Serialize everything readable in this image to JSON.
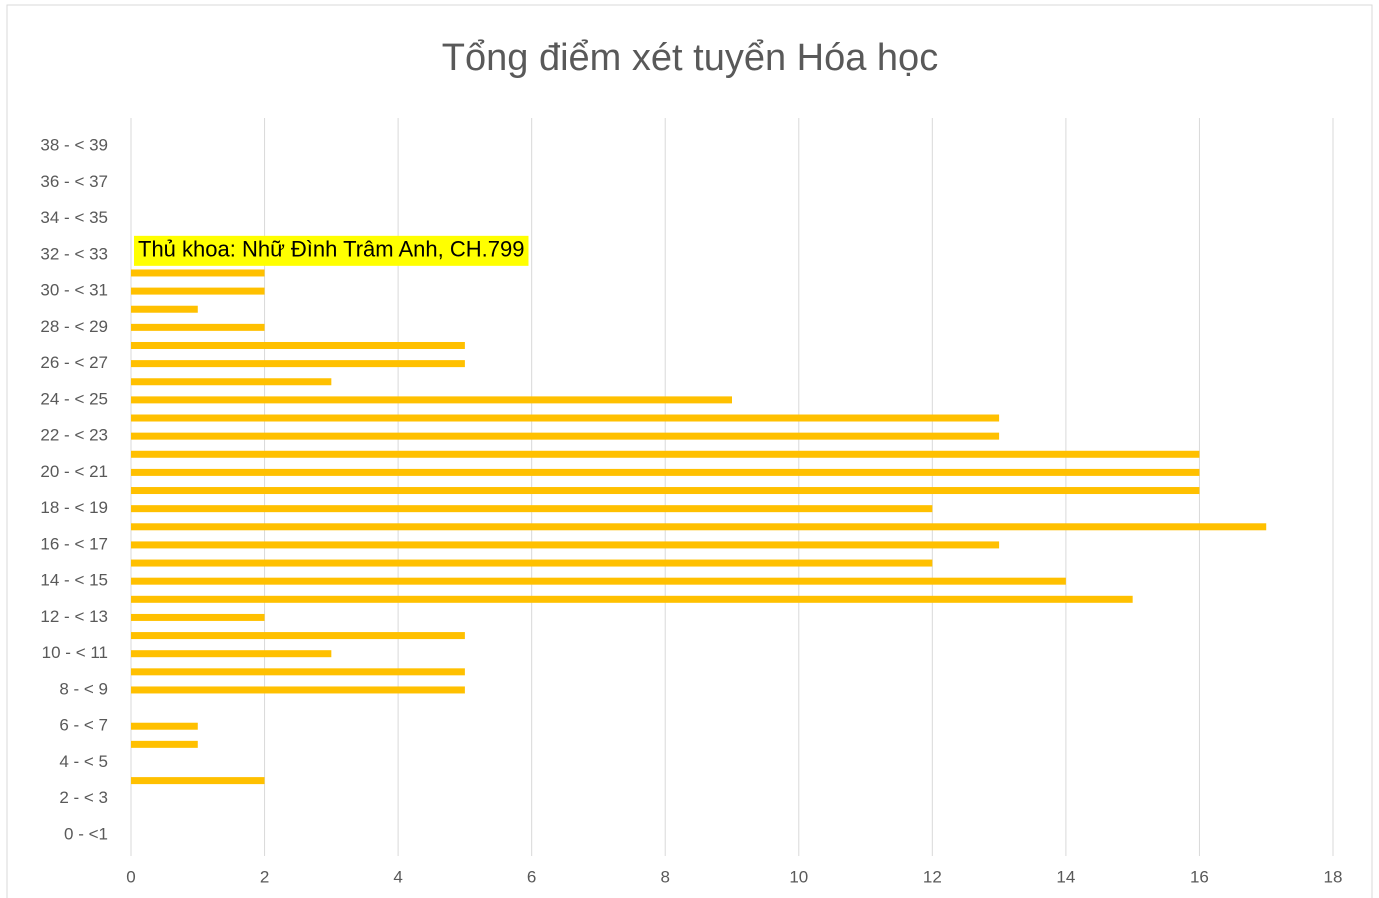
{
  "chart_data": {
    "type": "barh",
    "title": "Tổng điểm xét tuyển Hóa học",
    "annotation": "Thủ khoa: Nhữ Đình Trâm Anh, CH.799",
    "categories": [
      "0 - <1",
      null,
      "2 - < 3",
      null,
      "4 - < 5",
      null,
      "6 - < 7",
      null,
      "8 - < 9",
      null,
      "10 - < 11",
      null,
      "12 - < 13",
      null,
      "14 - < 15",
      null,
      "16 - < 17",
      null,
      "18 - < 19",
      null,
      "20 - < 21",
      null,
      "22 - < 23",
      null,
      "24 - < 25",
      null,
      "26 - < 27",
      null,
      "28 - < 29",
      null,
      "30 - < 31",
      null,
      "32 - < 33",
      null,
      "34 - < 35",
      null,
      "36 - < 37",
      null,
      "38 - < 39"
    ],
    "values": [
      0,
      0,
      0,
      2,
      0,
      1,
      1,
      0,
      5,
      5,
      3,
      5,
      2,
      15,
      14,
      12,
      13,
      17,
      12,
      16,
      16,
      16,
      13,
      13,
      9,
      3,
      5,
      5,
      2,
      1,
      2,
      2,
      0,
      0,
      0,
      0,
      0,
      0,
      0
    ],
    "color": "#ffc000",
    "xlim": [
      0,
      18
    ],
    "xticks": [
      0,
      2,
      4,
      6,
      8,
      10,
      12,
      14,
      16,
      18
    ],
    "grid": true
  }
}
